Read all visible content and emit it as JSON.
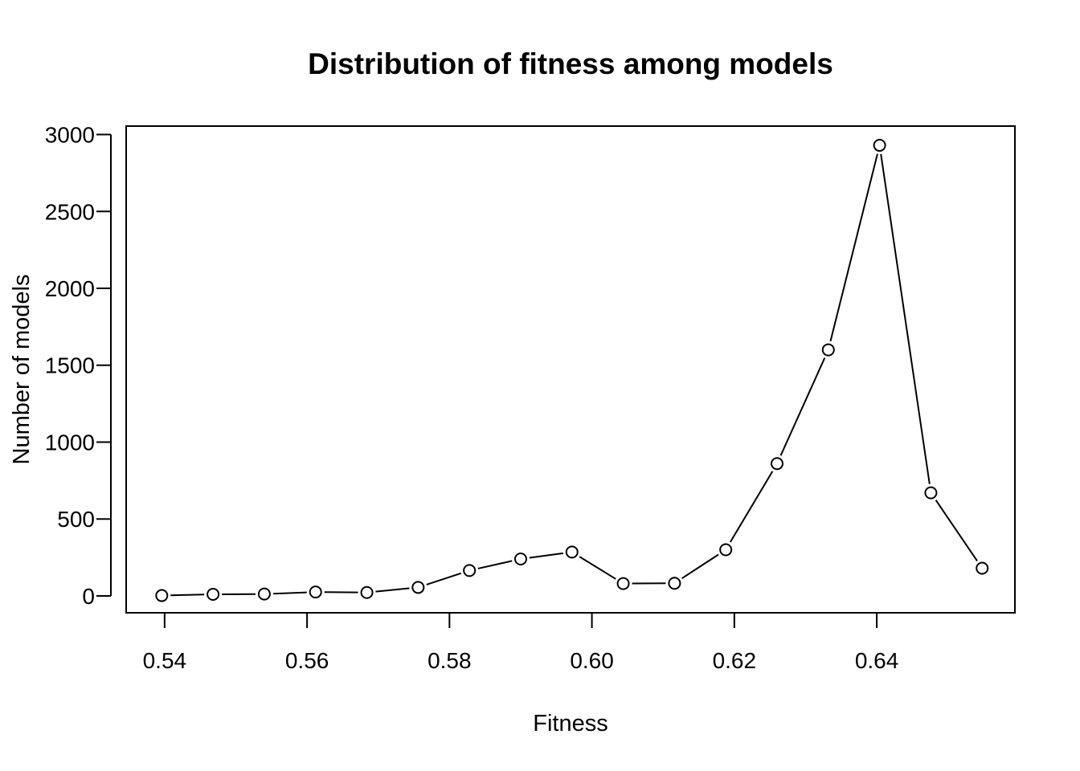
{
  "chart_data": {
    "type": "line",
    "title": "Distribution of fitness among models",
    "xlabel": "Fitness",
    "ylabel": "Number of models",
    "x_ticks": [
      0.54,
      0.56,
      0.58,
      0.6,
      0.62,
      0.64
    ],
    "x_tick_labels": [
      "0.54",
      "0.56",
      "0.58",
      "0.60",
      "0.62",
      "0.64"
    ],
    "y_ticks": [
      0,
      500,
      1000,
      1500,
      2000,
      2500,
      3000
    ],
    "y_tick_labels": [
      "0",
      "500",
      "1000",
      "1500",
      "2000",
      "2500",
      "3000"
    ],
    "xlim": [
      0.5346,
      0.6594
    ],
    "ylim": [
      -110,
      3055
    ],
    "grid": false,
    "marker": "open-circle",
    "colors": {
      "line": "#000000",
      "marker_fill": "#ffffff",
      "axis": "#000000"
    },
    "series": [
      {
        "x": [
          0.5396,
          0.5468,
          0.554,
          0.5612,
          0.5684,
          0.5756,
          0.5828,
          0.59,
          0.5972,
          0.6044,
          0.6116,
          0.6188,
          0.626,
          0.6332,
          0.6404,
          0.6476,
          0.6548
        ],
        "values": [
          2,
          10,
          12,
          25,
          22,
          55,
          165,
          240,
          285,
          80,
          82,
          300,
          860,
          1600,
          2930,
          670,
          180
        ]
      }
    ]
  }
}
